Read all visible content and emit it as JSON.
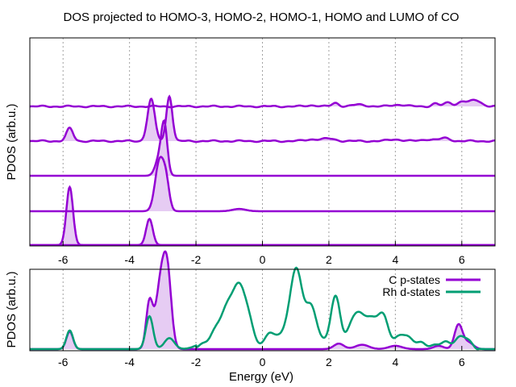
{
  "colors": {
    "c_p": "#9400d3",
    "rh_d": "#009e73",
    "fill": "#e6ccf3",
    "grid": "#a0a0a0"
  },
  "chart_data": [
    {
      "type": "area",
      "title": "DOS projected to HOMO-3, HOMO-2, HOMO-1, HOMO and LUMO of CO",
      "xlabel": "",
      "ylabel": "PDOS (arb.u.)",
      "xlim": [
        -7,
        7
      ],
      "xticks": [
        -6,
        -4,
        -2,
        0,
        2,
        4,
        6
      ],
      "xtick_labels": [
        "-6",
        "-4",
        "-2",
        "0",
        "2",
        "4",
        "6"
      ],
      "grid": "vertical dashed",
      "stacked_offsets": true,
      "series": [
        {
          "peaks": [
            [
              -5.8,
              1.0,
              0.1
            ],
            [
              -3.4,
              0.45,
              0.1
            ]
          ]
        },
        {
          "peaks": [
            [
              -3.1,
              0.85,
              0.13
            ],
            [
              -2.9,
              0.45,
              0.1
            ],
            [
              -0.7,
              0.04,
              0.2
            ]
          ]
        },
        {
          "peaks": [
            [
              -2.95,
              0.8,
              0.09
            ],
            [
              -3.1,
              0.3,
              0.12
            ]
          ]
        },
        {
          "peaks": [
            [
              -5.8,
              0.22,
              0.1
            ],
            [
              -3.35,
              0.72,
              0.11
            ],
            [
              -2.8,
              0.78,
              0.09
            ],
            [
              1.5,
              0.03,
              0.2
            ],
            [
              2.0,
              0.04,
              0.2
            ],
            [
              4.0,
              0.03,
              0.2
            ],
            [
              5.0,
              0.03,
              0.2
            ],
            [
              5.5,
              0.05,
              0.15
            ]
          ]
        },
        {
          "peaks": [
            [
              1.5,
              0.02,
              0.15
            ],
            [
              2.2,
              0.06,
              0.1
            ],
            [
              2.9,
              0.03,
              0.2
            ],
            [
              4.1,
              0.03,
              0.2
            ],
            [
              5.2,
              0.05,
              0.1
            ],
            [
              5.6,
              0.07,
              0.12
            ],
            [
              6.0,
              0.08,
              0.12
            ],
            [
              6.4,
              0.11,
              0.18
            ]
          ]
        }
      ]
    },
    {
      "type": "line",
      "xlabel": "Energy  (eV)",
      "ylabel": "PDOS (arb.u.)",
      "xlim": [
        -7,
        7
      ],
      "xticks": [
        -6,
        -4,
        -2,
        0,
        2,
        4,
        6
      ],
      "xtick_labels": [
        "-6",
        "-4",
        "-2",
        "0",
        "2",
        "4",
        "6"
      ],
      "grid": "vertical dashed",
      "legend": "top-right",
      "series": [
        {
          "name": "C p-states",
          "filled": true,
          "peaks": [
            [
              -5.8,
              0.16,
              0.1
            ],
            [
              -3.4,
              0.42,
              0.1
            ],
            [
              -3.05,
              0.62,
              0.15
            ],
            [
              -2.85,
              0.55,
              0.12
            ],
            [
              2.3,
              0.05,
              0.15
            ],
            [
              3.0,
              0.04,
              0.2
            ],
            [
              4.0,
              0.03,
              0.2
            ],
            [
              5.3,
              0.03,
              0.15
            ],
            [
              5.9,
              0.22,
              0.12
            ],
            [
              6.2,
              0.06,
              0.15
            ]
          ]
        },
        {
          "name": "Rh d-states",
          "filled": false,
          "peaks": [
            [
              -5.8,
              0.17,
              0.1
            ],
            [
              -3.4,
              0.3,
              0.11
            ],
            [
              -2.8,
              0.1,
              0.15
            ],
            [
              -1.9,
              0.03,
              0.2
            ],
            [
              -1.0,
              0.38,
              0.35
            ],
            [
              -0.6,
              0.35,
              0.25
            ],
            [
              0.2,
              0.12,
              0.12
            ],
            [
              0.6,
              0.15,
              0.2
            ],
            [
              1.0,
              0.68,
              0.17
            ],
            [
              1.45,
              0.4,
              0.2
            ],
            [
              2.2,
              0.48,
              0.15
            ],
            [
              2.8,
              0.3,
              0.2
            ],
            [
              3.2,
              0.25,
              0.18
            ],
            [
              3.6,
              0.3,
              0.18
            ],
            [
              4.2,
              0.14,
              0.2
            ],
            [
              4.8,
              0.06,
              0.25
            ],
            [
              5.5,
              0.05,
              0.2
            ],
            [
              6.0,
              0.12,
              0.2
            ]
          ]
        }
      ]
    }
  ]
}
